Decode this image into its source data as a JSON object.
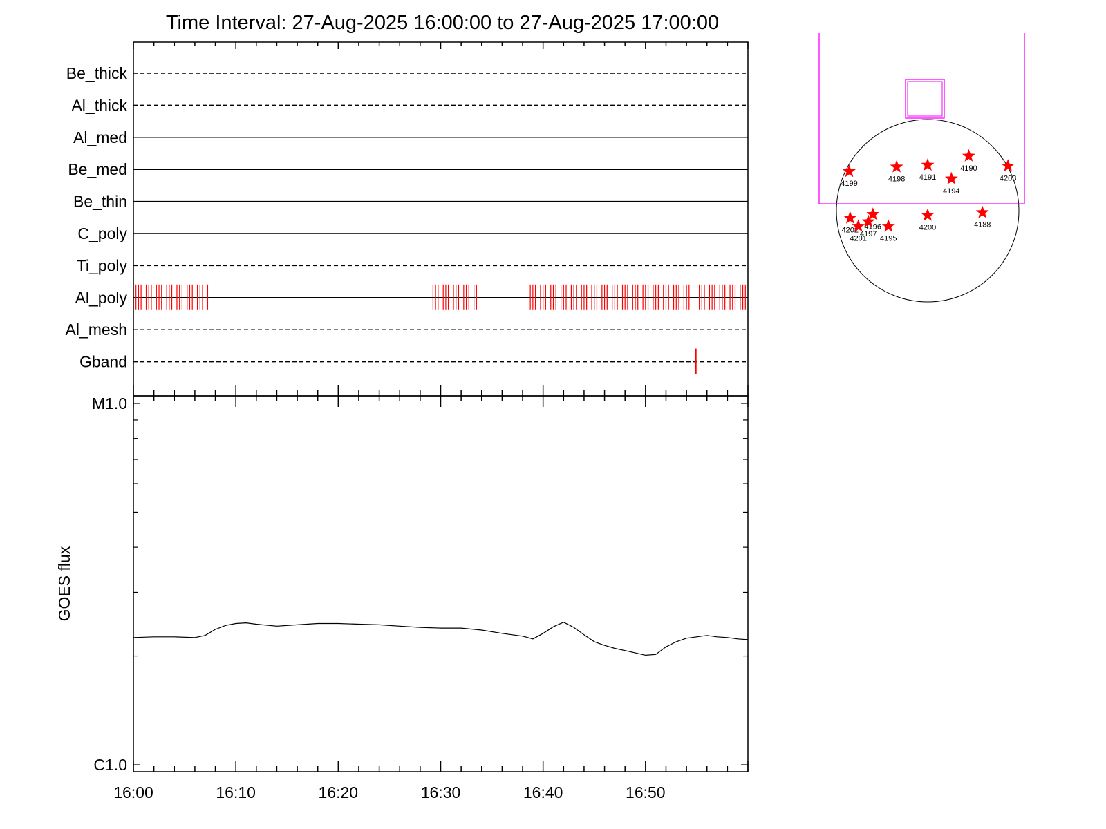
{
  "title": "Time Interval: 27-Aug-2025 16:00:00 to 27-Aug-2025 17:00:00",
  "colors": {
    "observation_marks": "#ff0000",
    "fov_box": "#ff00ff",
    "axis": "#000000",
    "star": "#ff0000"
  },
  "chart_data": [
    {
      "type": "event-timeline",
      "time_range": [
        "16:00",
        "17:00"
      ],
      "x_tick_labels": [
        "16:00",
        "16:10",
        "16:20",
        "16:30",
        "16:40",
        "16:50"
      ],
      "filters": [
        {
          "name": "Be_thick",
          "line": "dashed",
          "obs_minutes": []
        },
        {
          "name": "Al_thick",
          "line": "dashed",
          "obs_minutes": []
        },
        {
          "name": "Al_med",
          "line": "solid",
          "obs_minutes": []
        },
        {
          "name": "Be_med",
          "line": "solid",
          "obs_minutes": []
        },
        {
          "name": "Be_thin",
          "line": "solid",
          "obs_minutes": []
        },
        {
          "name": "C_poly",
          "line": "solid",
          "obs_minutes": []
        },
        {
          "name": "Ti_poly",
          "line": "dashed",
          "obs_minutes": []
        },
        {
          "name": "Al_poly",
          "line": "solid",
          "obs_minutes": [
            0.25,
            0.5,
            0.75,
            1.25,
            1.5,
            1.75,
            2.25,
            2.5,
            2.75,
            3.25,
            3.5,
            3.75,
            4.25,
            4.5,
            4.75,
            5.25,
            5.5,
            5.75,
            6.25,
            6.5,
            6.75,
            7.25,
            29.25,
            29.5,
            29.75,
            30.25,
            30.5,
            30.75,
            31.25,
            31.5,
            31.75,
            32.25,
            32.5,
            32.75,
            33.25,
            33.5,
            38.75,
            39,
            39.25,
            39.75,
            40,
            40.25,
            40.75,
            41,
            41.25,
            41.75,
            42,
            42.25,
            42.75,
            43,
            43.25,
            43.75,
            44,
            44.25,
            44.75,
            45,
            45.25,
            45.75,
            46,
            46.25,
            46.75,
            47,
            47.25,
            47.75,
            48,
            48.25,
            48.75,
            49,
            49.25,
            49.75,
            50,
            50.25,
            50.75,
            51,
            51.25,
            51.75,
            52,
            52.25,
            52.75,
            53,
            53.25,
            53.75,
            54,
            54.25,
            55.25,
            55.5,
            55.75,
            56.25,
            56.5,
            56.75,
            57.25,
            57.5,
            57.75,
            58.25,
            58.5,
            58.75,
            59.25,
            59.5,
            59.75
          ]
        },
        {
          "name": "Al_mesh",
          "line": "dashed",
          "obs_minutes": []
        },
        {
          "name": "Gband",
          "line": "dashed",
          "obs_minutes": [
            54.9
          ]
        }
      ]
    },
    {
      "type": "line",
      "ylabel": "GOES flux",
      "y_scale": "log",
      "y_tick_labels": [
        "M1.0",
        "C1.0"
      ],
      "ylim": [
        1e-06,
        1e-05
      ],
      "xlim": [
        "16:00",
        "17:00"
      ],
      "x_tick_labels": [
        "16:00",
        "16:10",
        "16:20",
        "16:30",
        "16:40",
        "16:50"
      ],
      "series": [
        {
          "x_minutes": [
            0,
            2,
            4,
            6,
            7,
            8,
            9,
            10,
            11,
            12,
            14,
            16,
            18,
            20,
            22,
            24,
            26,
            28,
            30,
            32,
            34,
            36,
            38,
            39,
            40,
            41,
            42,
            43,
            44,
            45,
            46,
            47,
            48,
            49,
            50,
            51,
            52,
            53,
            54,
            55,
            56,
            57,
            58,
            59,
            60
          ],
          "y": [
            2.25e-06,
            2.26e-06,
            2.26e-06,
            2.25e-06,
            2.28e-06,
            2.37e-06,
            2.43e-06,
            2.46e-06,
            2.47e-06,
            2.45e-06,
            2.42e-06,
            2.44e-06,
            2.46e-06,
            2.46e-06,
            2.45e-06,
            2.44e-06,
            2.42e-06,
            2.4e-06,
            2.39e-06,
            2.39e-06,
            2.36e-06,
            2.31e-06,
            2.27e-06,
            2.23e-06,
            2.31e-06,
            2.41e-06,
            2.48e-06,
            2.4e-06,
            2.29e-06,
            2.19e-06,
            2.14e-06,
            2.1e-06,
            2.07e-06,
            2.04e-06,
            2.01e-06,
            2.02e-06,
            2.12e-06,
            2.19e-06,
            2.24e-06,
            2.26e-06,
            2.28e-06,
            2.26e-06,
            2.25e-06,
            2.23e-06,
            2.22e-06
          ]
        }
      ]
    },
    {
      "type": "scatter",
      "active_regions": [
        {
          "label": "4199",
          "x": -0.86,
          "y": 0.43
        },
        {
          "label": "4198",
          "x": -0.34,
          "y": 0.48
        },
        {
          "label": "4191",
          "x": 0.0,
          "y": 0.5
        },
        {
          "label": "4190",
          "x": 0.45,
          "y": 0.6
        },
        {
          "label": "4203",
          "x": 0.88,
          "y": 0.49
        },
        {
          "label": "4194",
          "x": 0.26,
          "y": 0.35
        },
        {
          "label": "4188",
          "x": 0.6,
          "y": -0.02
        },
        {
          "label": "4200",
          "x": 0.0,
          "y": -0.05
        },
        {
          "label": "4196",
          "x": -0.6,
          "y": -0.04
        },
        {
          "label": "4202",
          "x": -0.85,
          "y": -0.08
        },
        {
          "label": "4197",
          "x": -0.65,
          "y": -0.12
        },
        {
          "label": "4201",
          "x": -0.76,
          "y": -0.17
        },
        {
          "label": "4195",
          "x": -0.43,
          "y": -0.17
        }
      ]
    }
  ]
}
